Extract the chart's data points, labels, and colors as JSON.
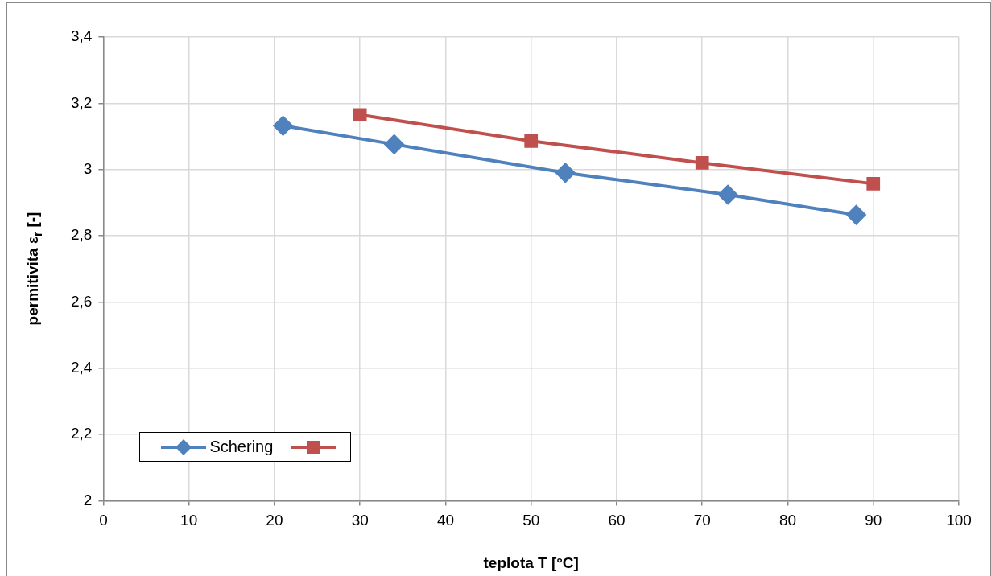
{
  "chart_data": {
    "type": "line",
    "xlabel": "teplota T [°C]",
    "ylabel": "permitivita ε$_{r}$ [-]",
    "xlim": [
      0,
      100
    ],
    "xticks": [
      0,
      10,
      20,
      30,
      40,
      50,
      60,
      70,
      80,
      90,
      100
    ],
    "ylim": [
      2,
      3.4
    ],
    "yticks": [
      {
        "value": 2,
        "label": "2"
      },
      {
        "value": 2.2,
        "label": "2,2"
      },
      {
        "value": 2.4,
        "label": "2,4"
      },
      {
        "value": 2.6,
        "label": "2,6"
      },
      {
        "value": 2.8,
        "label": "2,8"
      },
      {
        "value": 3,
        "label": "3"
      },
      {
        "value": 3.2,
        "label": "3,2"
      },
      {
        "value": 3.4,
        "label": "3,4"
      }
    ],
    "grid": true,
    "legend": "bottom left",
    "marker": "diamond",
    "line_style": "solid",
    "series": [
      {
        "name": "Schering",
        "color": "#4f81bd",
        "x": [
          21,
          34,
          54,
          73,
          88
        ],
        "values": [
          3.132,
          3.076,
          2.99,
          2.924,
          2.863
        ]
      },
      {
        "color": "#c0504d",
        "marker": "square",
        "x": [
          30,
          50,
          70,
          90
        ],
        "values": [
          3.165,
          3.086,
          3.02,
          2.957
        ]
      }
    ]
  }
}
